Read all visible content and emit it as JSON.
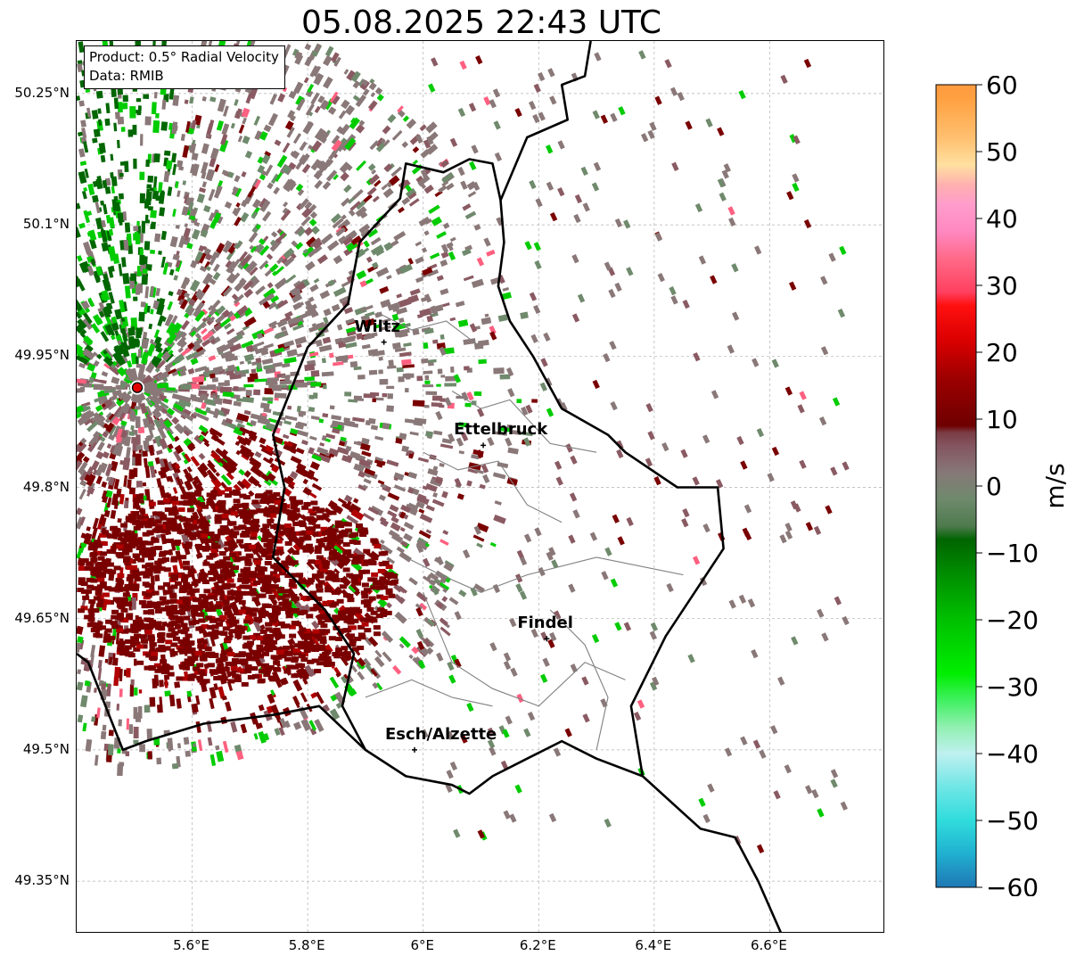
{
  "title": "05.08.2025 22:43 UTC",
  "info": {
    "product": "Product: 0.5° Radial Velocity",
    "source": "Data: RMIB"
  },
  "map": {
    "lat_range": [
      49.29,
      50.31
    ],
    "lon_range": [
      5.4,
      6.8
    ],
    "lat_ticks": [
      {
        "value": 50.25,
        "label": "50.25°N"
      },
      {
        "value": 50.1,
        "label": "50.1°N"
      },
      {
        "value": 49.95,
        "label": "49.95°N"
      },
      {
        "value": 49.8,
        "label": "49.8°N"
      },
      {
        "value": 49.65,
        "label": "49.65°N"
      },
      {
        "value": 49.5,
        "label": "49.5°N"
      },
      {
        "value": 49.35,
        "label": "49.35°N"
      }
    ],
    "lon_ticks": [
      {
        "value": 5.6,
        "label": "5.6°E"
      },
      {
        "value": 5.8,
        "label": "5.8°E"
      },
      {
        "value": 6.0,
        "label": "6°E"
      },
      {
        "value": 6.2,
        "label": "6.2°E"
      },
      {
        "value": 6.4,
        "label": "6.4°E"
      },
      {
        "value": 6.6,
        "label": "6.6°E"
      }
    ],
    "grid": true,
    "radar_site": {
      "lon": 5.505,
      "lat": 49.914,
      "color": "#e00000"
    },
    "cities": [
      {
        "name": "Wiltz",
        "lon": 5.932,
        "lat": 49.966
      },
      {
        "name": "Ettelbruck",
        "lon": 6.104,
        "lat": 49.848
      },
      {
        "name": "Findel",
        "lon": 6.214,
        "lat": 49.627
      },
      {
        "name": "Esch/Alzette",
        "lon": 5.985,
        "lat": 49.5
      }
    ],
    "colors": {
      "approaching_strong": "#006600",
      "approaching": "#00cc00",
      "near_zero": "#8a7878",
      "receding": "#7a0000",
      "receding_light": "#ff6080",
      "border": "#000000",
      "canton_border": "#808080"
    }
  },
  "colorbar": {
    "label": "m/s",
    "min": -60,
    "max": 60,
    "ticks": [
      {
        "value": 60,
        "label": "60"
      },
      {
        "value": 50,
        "label": "50"
      },
      {
        "value": 40,
        "label": "40"
      },
      {
        "value": 30,
        "label": "30"
      },
      {
        "value": 20,
        "label": "20"
      },
      {
        "value": 10,
        "label": "10"
      },
      {
        "value": 0,
        "label": "0"
      },
      {
        "value": -10,
        "label": "−10"
      },
      {
        "value": -20,
        "label": "−20"
      },
      {
        "value": -30,
        "label": "−30"
      },
      {
        "value": -40,
        "label": "−40"
      },
      {
        "value": -50,
        "label": "−50"
      },
      {
        "value": -60,
        "label": "−60"
      }
    ],
    "stops": [
      {
        "v": -60,
        "color": "#1f77b4"
      },
      {
        "v": -55,
        "color": "#20b0d0"
      },
      {
        "v": -50,
        "color": "#30dcdc"
      },
      {
        "v": -45,
        "color": "#70e6e6"
      },
      {
        "v": -40,
        "color": "#bff0f0"
      },
      {
        "v": -36,
        "color": "#90f0b0"
      },
      {
        "v": -32,
        "color": "#40f060"
      },
      {
        "v": -28,
        "color": "#00ee00"
      },
      {
        "v": -20,
        "color": "#00c000"
      },
      {
        "v": -13,
        "color": "#008c00"
      },
      {
        "v": -8,
        "color": "#006400"
      },
      {
        "v": -6,
        "color": "#4e7a4e"
      },
      {
        "v": -2,
        "color": "#6e8a6c"
      },
      {
        "v": 2,
        "color": "#877878"
      },
      {
        "v": 6,
        "color": "#845560"
      },
      {
        "v": 8,
        "color": "#7a3c44"
      },
      {
        "v": 9,
        "color": "#6e0000"
      },
      {
        "v": 16,
        "color": "#9c0000"
      },
      {
        "v": 22,
        "color": "#dd0000"
      },
      {
        "v": 27,
        "color": "#ff1010"
      },
      {
        "v": 29,
        "color": "#ff4060"
      },
      {
        "v": 34,
        "color": "#ff6a88"
      },
      {
        "v": 38,
        "color": "#ff88c0"
      },
      {
        "v": 42,
        "color": "#ff9ccc"
      },
      {
        "v": 45,
        "color": "#ffb0b0"
      },
      {
        "v": 48,
        "color": "#ffe0a0"
      },
      {
        "v": 52,
        "color": "#ffc070"
      },
      {
        "v": 58,
        "color": "#ffa040"
      },
      {
        "v": 60,
        "color": "#ff9a40"
      }
    ]
  }
}
